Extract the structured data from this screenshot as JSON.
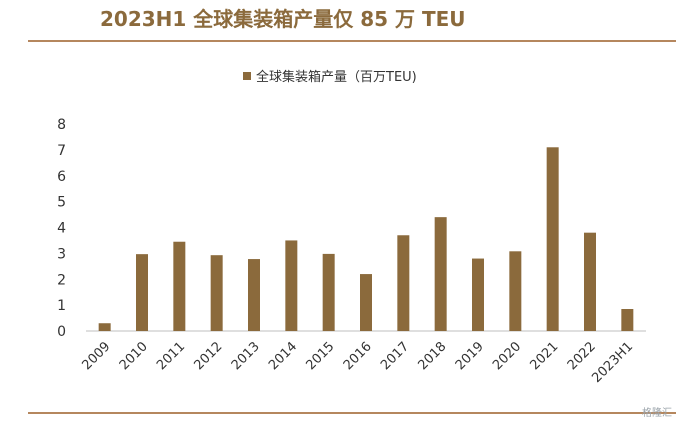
{
  "header": {
    "title": "2023H1 全球集装箱产量仅 85 万 TEU"
  },
  "watermark": {
    "text": "格隆汇"
  },
  "colors": {
    "bar": "#8B6A3C",
    "rule": "#B5875E",
    "title": "#8B6A3C"
  },
  "chart_data": {
    "type": "bar",
    "categories": [
      "2009",
      "2010",
      "2011",
      "2012",
      "2013",
      "2014",
      "2015",
      "2016",
      "2017",
      "2018",
      "2019",
      "2020",
      "2021",
      "2022",
      "2023H1"
    ],
    "series": [
      {
        "name": "全球集装箱产量（百万TEU)",
        "values": [
          0.3,
          2.97,
          3.45,
          2.93,
          2.78,
          3.5,
          2.98,
          2.2,
          3.7,
          4.4,
          2.8,
          3.08,
          7.1,
          3.8,
          0.85
        ]
      }
    ],
    "ylim": [
      0,
      8
    ],
    "yticks": [
      0,
      1,
      2,
      3,
      4,
      5,
      6,
      7,
      8
    ],
    "legend": "top-center",
    "grid": false
  }
}
